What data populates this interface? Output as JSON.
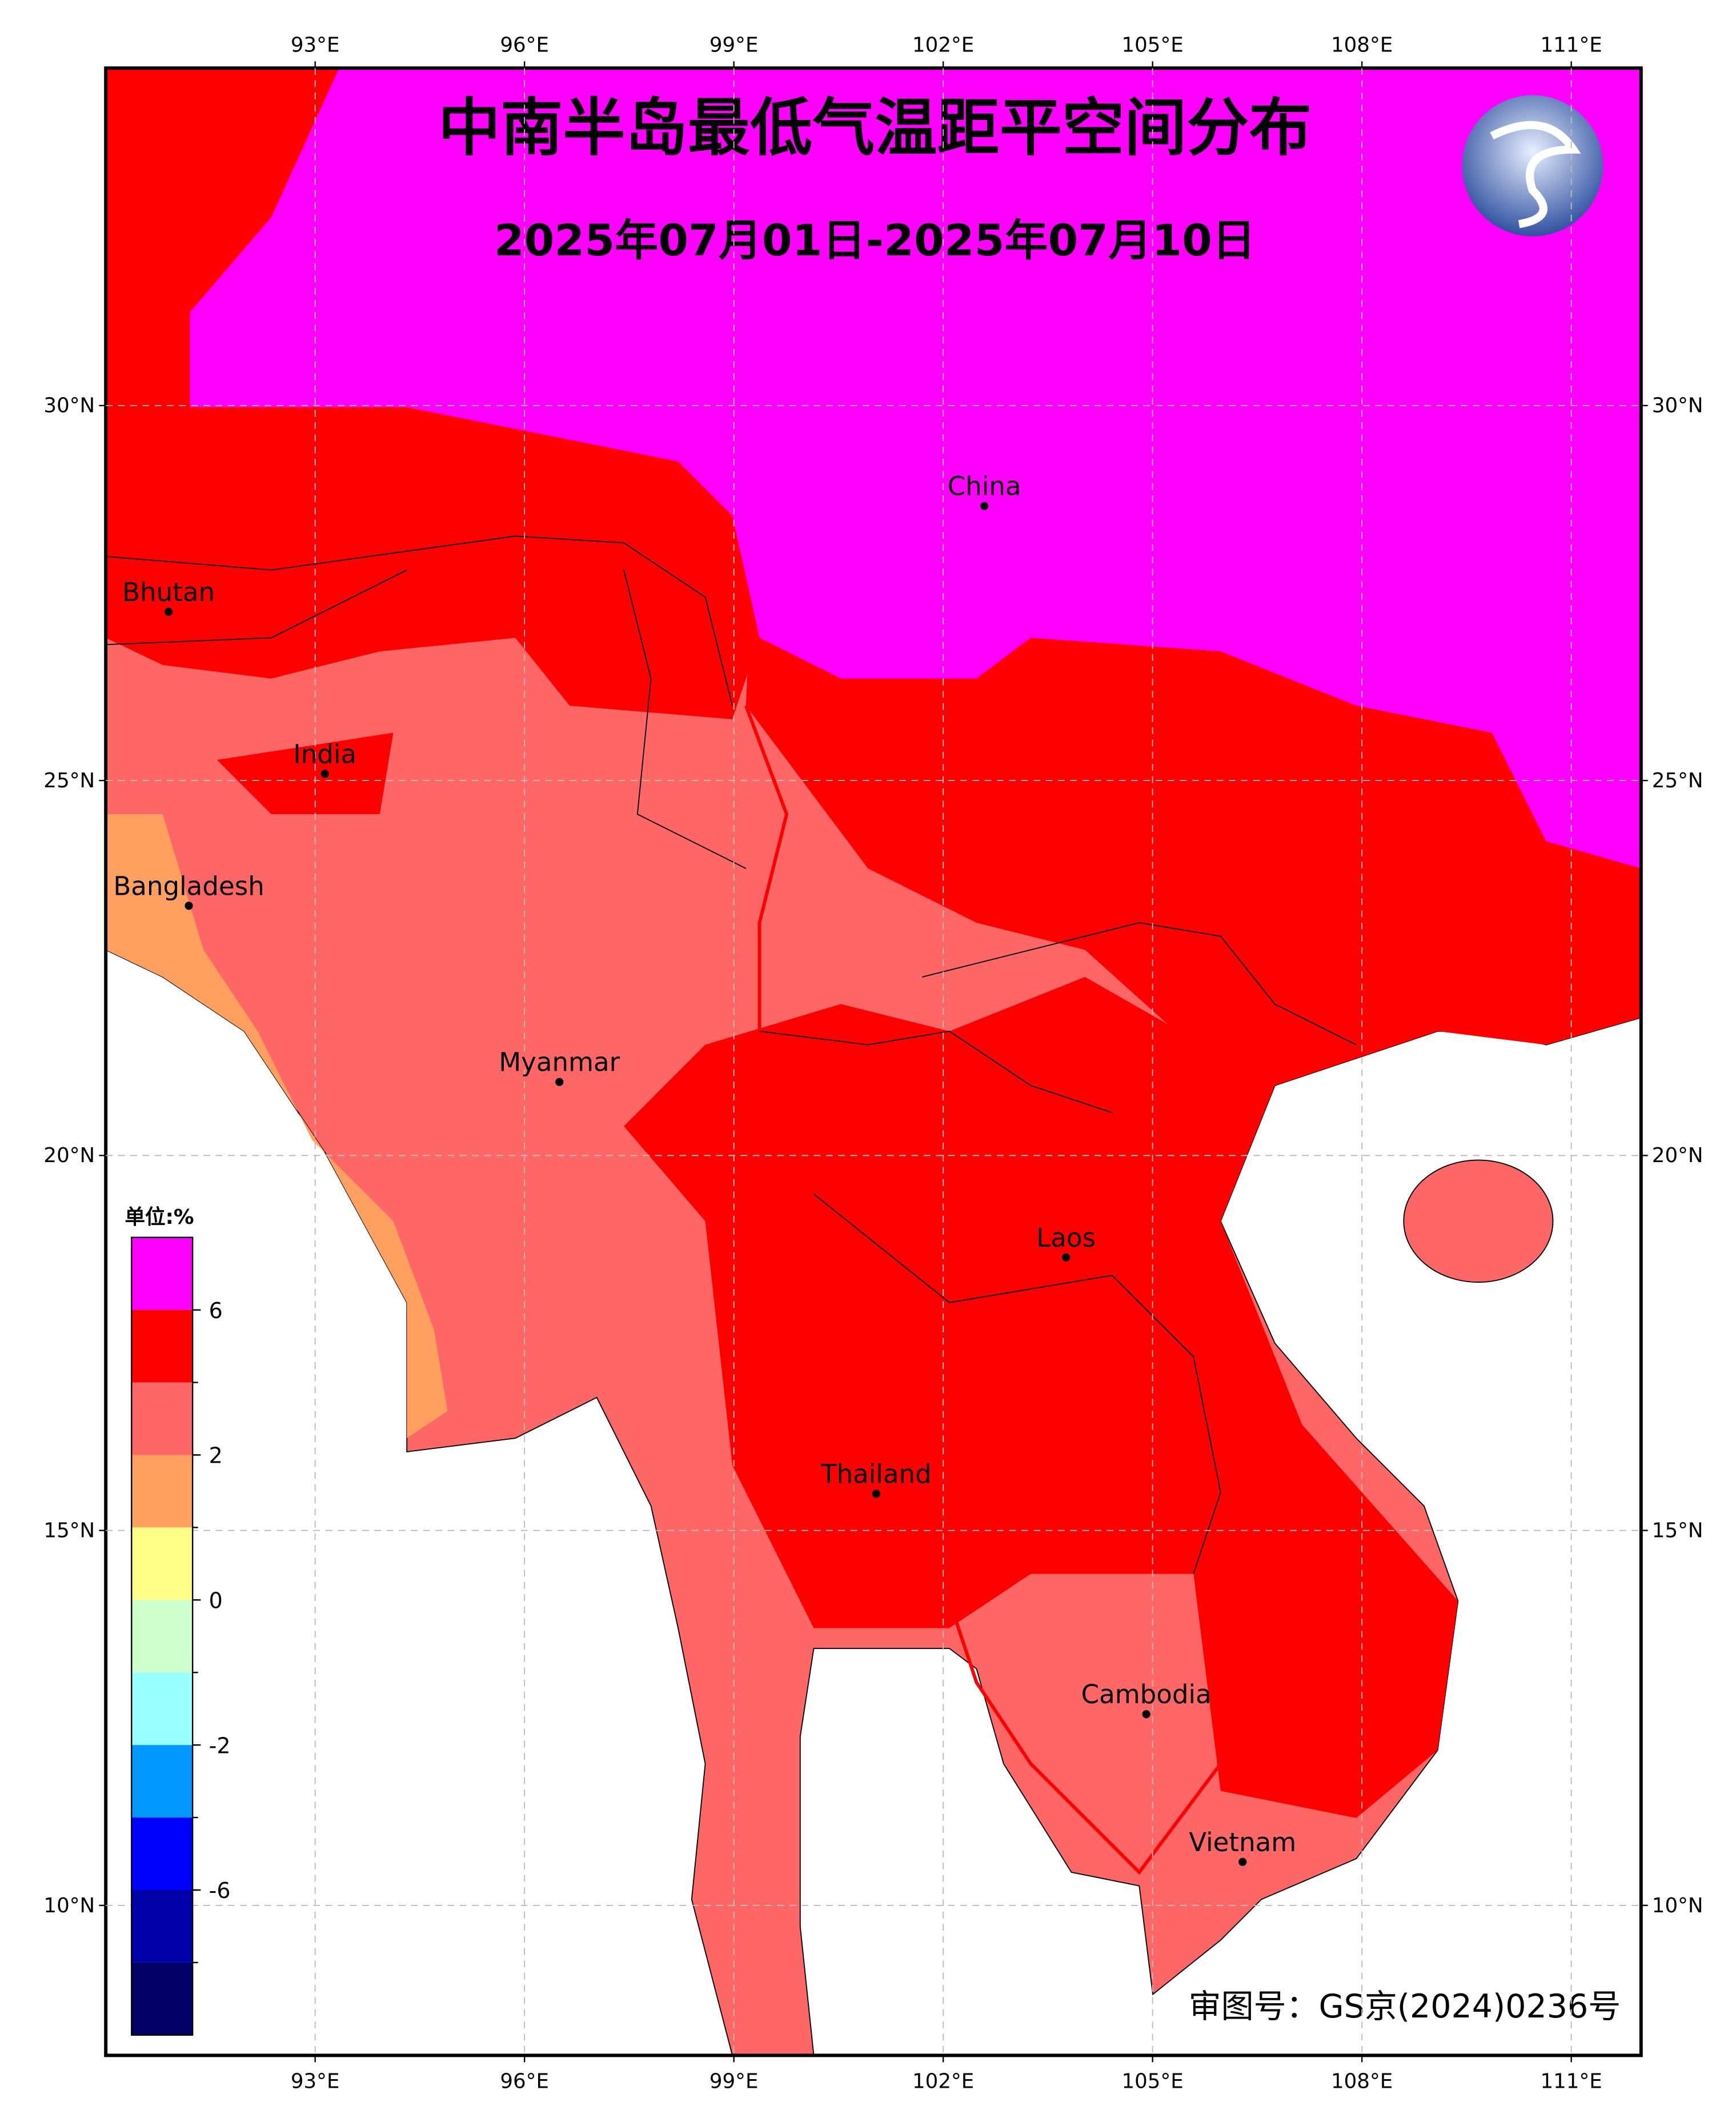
{
  "chart_data": {
    "type": "map",
    "title": "中南半岛最低气温距平空间分布",
    "subtitle": "2025年07月01日-2025年07月10日",
    "xlim": [
      90,
      112
    ],
    "ylim": [
      8,
      34.5
    ],
    "xticks": [
      {
        "value": 93,
        "label": "93°E"
      },
      {
        "value": 96,
        "label": "96°E"
      },
      {
        "value": 99,
        "label": "99°E"
      },
      {
        "value": 102,
        "label": "102°E"
      },
      {
        "value": 105,
        "label": "105°E"
      },
      {
        "value": 108,
        "label": "108°E"
      },
      {
        "value": 111,
        "label": "111°E"
      }
    ],
    "yticks": [
      {
        "value": 10,
        "label": "10°N"
      },
      {
        "value": 15,
        "label": "15°N"
      },
      {
        "value": 20,
        "label": "20°N"
      },
      {
        "value": 25,
        "label": "25°N"
      },
      {
        "value": 30,
        "label": "30°N"
      }
    ],
    "grid": true,
    "places": [
      {
        "name": "Bhutan",
        "lon": 90.9,
        "lat": 27.25
      },
      {
        "name": "India",
        "lon": 93.14,
        "lat": 25.09
      },
      {
        "name": "Bangladesh",
        "lon": 91.19,
        "lat": 23.33
      },
      {
        "name": "China",
        "lon": 102.59,
        "lat": 28.66
      },
      {
        "name": "Myanmar",
        "lon": 96.5,
        "lat": 20.98
      },
      {
        "name": "Laos",
        "lon": 103.76,
        "lat": 18.64
      },
      {
        "name": "Thailand",
        "lon": 101.04,
        "lat": 15.49
      },
      {
        "name": "Cambodia",
        "lon": 104.91,
        "lat": 12.55
      },
      {
        "name": "Vietnam",
        "lon": 106.29,
        "lat": 10.58
      }
    ],
    "colorbar": {
      "unit": "单位:%",
      "colors": [
        "#ff00ff",
        "#ff0000",
        "#ff6666",
        "#ffa060",
        "#ffff88",
        "#ccffcc",
        "#99ffff",
        "#0099ff",
        "#0000ff",
        "#0000aa",
        "#000066"
      ],
      "ticks": [
        6,
        2,
        0,
        -2,
        -6
      ]
    },
    "review_number": "审图号：GS京(2024)0236号"
  }
}
